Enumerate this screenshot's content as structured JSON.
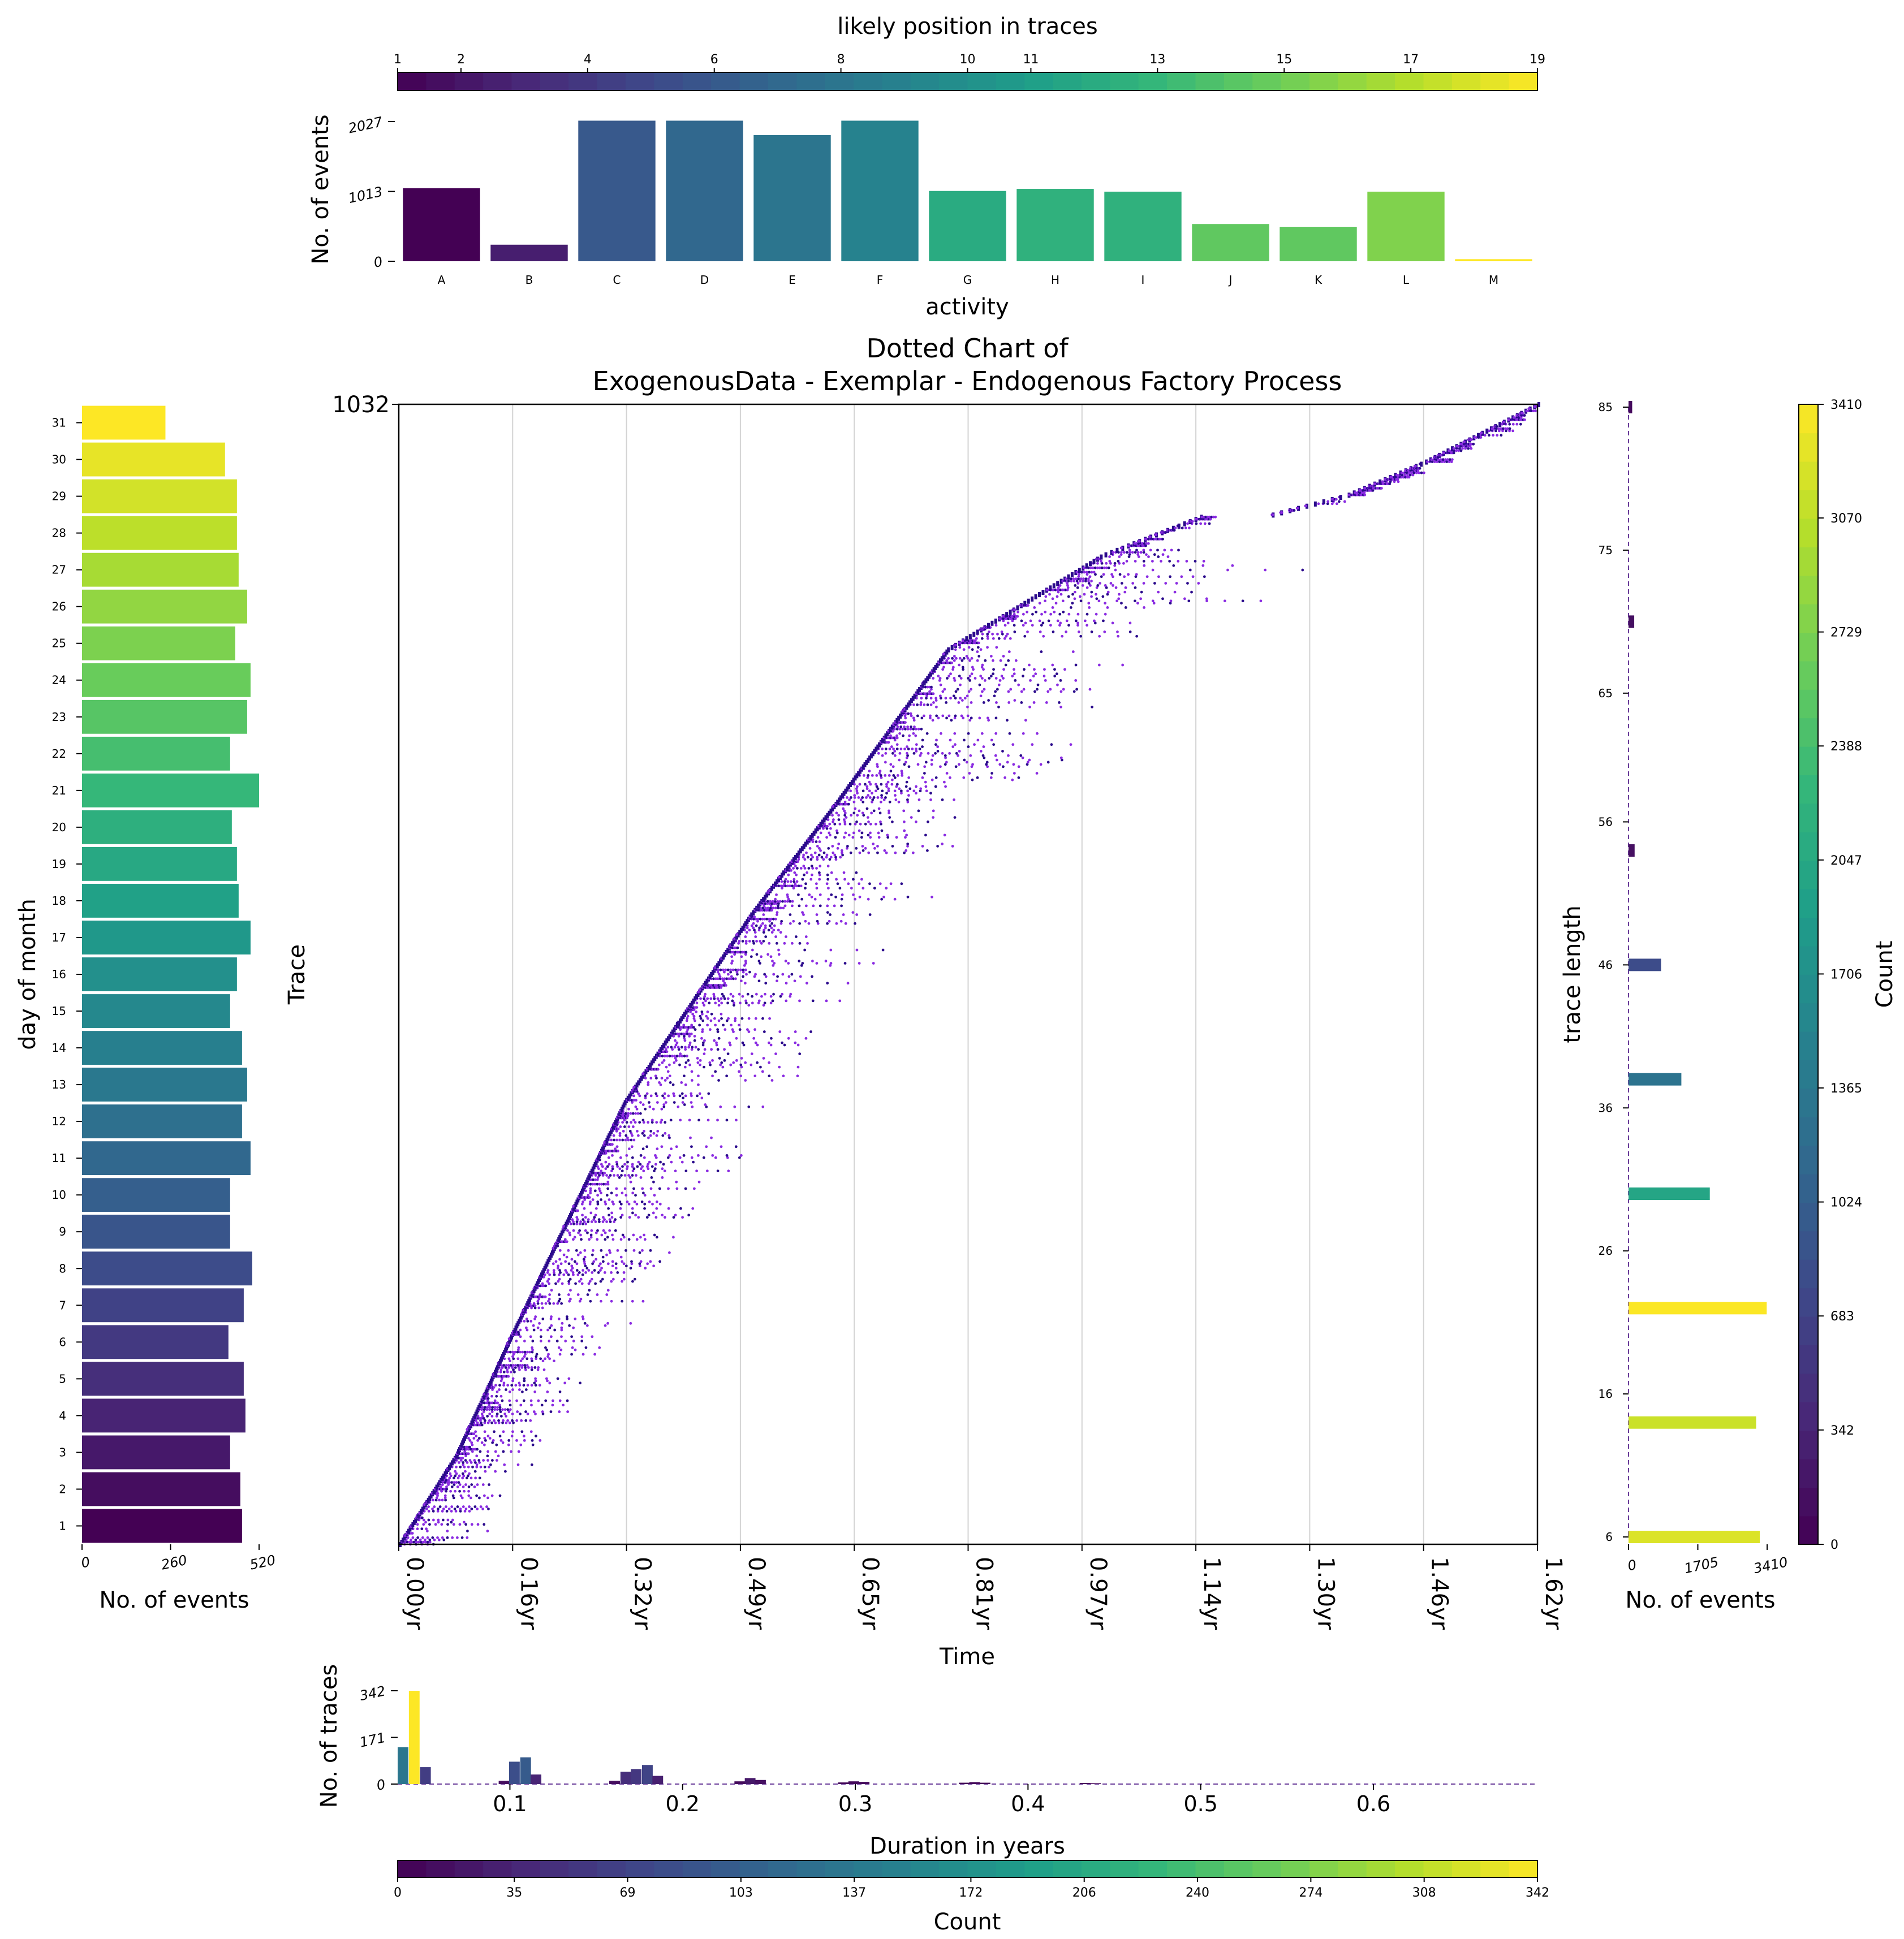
{
  "colors": {
    "viridis": [
      "#440154",
      "#482878",
      "#3e4989",
      "#31688e",
      "#26828e",
      "#1f9e89",
      "#35b779",
      "#6ece58",
      "#b5de2b",
      "#fde725"
    ],
    "dot_primary": "#2b0a8c",
    "dot_secondary": "#8a2be2",
    "grid": "#d3d3d3"
  },
  "chart_data": [
    {
      "id": "activity-histogram",
      "type": "bar",
      "colorbar_label": "likely position in traces",
      "colorbar_ticks": [
        "1",
        "2",
        "4",
        "6",
        "8",
        "10",
        "11",
        "13",
        "15",
        "17",
        "19"
      ],
      "colorbar_tick_values": [
        1,
        2,
        4,
        6,
        8,
        10,
        11,
        13,
        15,
        17,
        19
      ],
      "colorbar_range": [
        1,
        19
      ],
      "xlabel": "activity",
      "ylabel": "No. of events",
      "y_ticks": [
        "0",
        "1013",
        "2027"
      ],
      "y_tick_values": [
        0,
        1013,
        2027
      ],
      "ylim": [
        0,
        2027
      ],
      "categories": [
        "A",
        "B",
        "C",
        "D",
        "E",
        "F",
        "G",
        "H",
        "I",
        "J",
        "K",
        "L",
        "M"
      ],
      "values": [
        1060,
        240,
        2040,
        2040,
        1830,
        2040,
        1020,
        1050,
        1010,
        540,
        500,
        1010,
        30
      ],
      "position": [
        1,
        2.5,
        6,
        7,
        8,
        9,
        12,
        12.5,
        12.5,
        14.5,
        14.5,
        15.5,
        19
      ]
    },
    {
      "id": "dotted-chart",
      "type": "scatter",
      "title_line1": "Dotted Chart of",
      "title_line2": "ExogenousData - Exemplar - Endogenous Factory Process",
      "xlabel": "Time",
      "ylabel": "Trace",
      "y_top_label": "1032",
      "ylim": [
        0,
        1032
      ],
      "xlim": [
        0,
        1.62
      ],
      "x_ticks": [
        "0.00yr",
        "0.16yr",
        "0.32yr",
        "0.49yr",
        "0.65yr",
        "0.81yr",
        "0.97yr",
        "1.14yr",
        "1.30yr",
        "1.46yr",
        "1.62yr"
      ],
      "x_tick_values": [
        0,
        0.162,
        0.324,
        0.486,
        0.648,
        0.81,
        0.972,
        1.134,
        1.296,
        1.458,
        1.62
      ],
      "trace_start_curve": [
        [
          0,
          0
        ],
        [
          0.08,
          80
        ],
        [
          0.16,
          190
        ],
        [
          0.32,
          400
        ],
        [
          0.5,
          570
        ],
        [
          0.62,
          670
        ],
        [
          0.78,
          810
        ],
        [
          1.0,
          895
        ],
        [
          1.14,
          930
        ],
        [
          1.2,
          925
        ],
        [
          1.35,
          950
        ],
        [
          1.46,
          980
        ],
        [
          1.62,
          1032
        ]
      ],
      "trace_tail_max_years": 0.45,
      "grid": "vertical"
    },
    {
      "id": "day-of-month",
      "type": "bar",
      "orientation": "horizontal",
      "ylabel": "day of month",
      "xlabel": "No. of events",
      "x_ticks": [
        "0",
        "260",
        "520"
      ],
      "x_tick_values": [
        0,
        260,
        520
      ],
      "xlim": [
        0,
        520
      ],
      "categories": [
        "1",
        "2",
        "3",
        "4",
        "5",
        "6",
        "7",
        "8",
        "9",
        "10",
        "11",
        "12",
        "13",
        "14",
        "15",
        "16",
        "17",
        "18",
        "19",
        "20",
        "21",
        "22",
        "23",
        "24",
        "25",
        "26",
        "27",
        "28",
        "29",
        "30",
        "31"
      ],
      "values": [
        470,
        465,
        435,
        480,
        475,
        430,
        475,
        500,
        435,
        435,
        495,
        470,
        485,
        470,
        435,
        455,
        495,
        460,
        455,
        440,
        520,
        435,
        485,
        495,
        450,
        485,
        460,
        455,
        455,
        420,
        245
      ]
    },
    {
      "id": "trace-length",
      "type": "bar",
      "orientation": "horizontal",
      "ylabel": "trace length",
      "xlabel": "No. of events",
      "y_ticks": [
        "6",
        "16",
        "26",
        "36",
        "46",
        "56",
        "65",
        "75",
        "85"
      ],
      "y_tick_values": [
        6,
        16,
        26,
        36,
        46,
        56,
        65,
        75,
        85
      ],
      "ylim": [
        6,
        85
      ],
      "x_ticks": [
        "0",
        "1705",
        "3410"
      ],
      "x_tick_values": [
        0,
        1705,
        3410
      ],
      "xlim": [
        0,
        3410
      ],
      "lengths": [
        6,
        14,
        22,
        30,
        38,
        46,
        54,
        70,
        85
      ],
      "values": [
        3230,
        3140,
        3400,
        2000,
        1300,
        800,
        150,
        140,
        90
      ],
      "colorbar_label": "Count",
      "colorbar_ticks": [
        "0",
        "342",
        "683",
        "1024",
        "1365",
        "1706",
        "2047",
        "2388",
        "2729",
        "3070",
        "3410"
      ],
      "colorbar_tick_values": [
        0,
        342,
        683,
        1024,
        1365,
        1706,
        2047,
        2388,
        2729,
        3070,
        3410
      ],
      "colorbar_range": [
        0,
        3410
      ]
    },
    {
      "id": "duration-histogram",
      "type": "bar",
      "xlabel": "Duration in years",
      "ylabel": "No. of traces",
      "y_ticks": [
        "0",
        "171",
        "342"
      ],
      "y_tick_values": [
        0,
        171,
        342
      ],
      "ylim": [
        0,
        342
      ],
      "xlim": [
        0.035,
        0.695
      ],
      "x_ticks": [
        "0.1",
        "0.2",
        "0.3",
        "0.4",
        "0.5",
        "0.6"
      ],
      "x_tick_values": [
        0.1,
        0.2,
        0.3,
        0.4,
        0.5,
        0.6
      ],
      "bin_starts": [
        0.035,
        0.0415,
        0.048,
        0.0935,
        0.0995,
        0.106,
        0.112,
        0.1575,
        0.164,
        0.17,
        0.1765,
        0.1825,
        0.23,
        0.236,
        0.242,
        0.29,
        0.296,
        0.302,
        0.36,
        0.366,
        0.372,
        0.43,
        0.436
      ],
      "bin_width": 0.0062,
      "values": [
        135,
        342,
        62,
        12,
        82,
        98,
        35,
        12,
        45,
        55,
        70,
        30,
        10,
        22,
        15,
        6,
        10,
        8,
        5,
        7,
        5,
        4,
        3
      ],
      "colorbar_label": "Count",
      "colorbar_ticks": [
        "0",
        "35",
        "69",
        "103",
        "137",
        "172",
        "206",
        "240",
        "274",
        "308",
        "342"
      ],
      "colorbar_tick_values": [
        0,
        35,
        69,
        103,
        137,
        172,
        206,
        240,
        274,
        308,
        342
      ],
      "colorbar_range": [
        0,
        342
      ]
    }
  ]
}
